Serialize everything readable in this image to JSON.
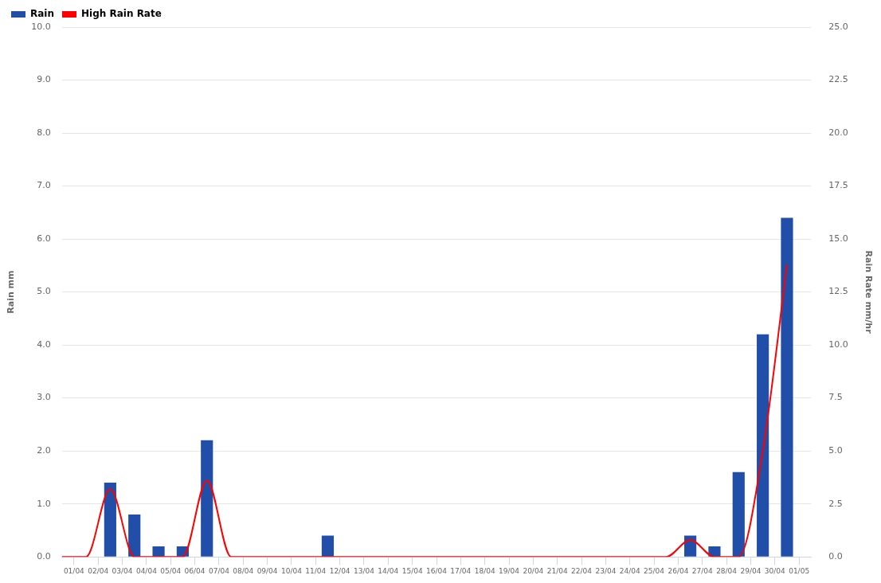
{
  "chart_data": {
    "type": "bar",
    "x": [
      "--03-31T12:00",
      "--04-01T12:00",
      "--04-02T12:00",
      "--04-03T12:00",
      "--04-04T12:00",
      "--04-05T12:00",
      "--04-06T12:00",
      "--04-07T12:00",
      "--04-08T12:00",
      "--04-09T12:00",
      "--04-10T12:00",
      "--04-11T12:00",
      "--04-12T12:00",
      "--04-13T12:00",
      "--04-14T12:00",
      "--04-15T12:00",
      "--04-16T12:00",
      "--04-17T12:00",
      "--04-18T12:00",
      "--04-19T12:00",
      "--04-20T12:00",
      "--04-21T12:00",
      "--04-22T12:00",
      "--04-23T12:00",
      "--04-24T12:00",
      "--04-25T12:00",
      "--04-26T12:00",
      "--04-27T12:00",
      "--04-28T12:00",
      "--04-29T12:00",
      "--04-30T12:00"
    ],
    "series": [
      {
        "name": "Rain",
        "color": "#204ea8",
        "values": [
          0,
          0,
          1.4,
          0.8,
          0.2,
          0.2,
          2.2,
          0,
          0,
          0,
          0,
          0.4,
          0,
          0,
          0,
          0,
          0,
          0,
          0,
          0,
          0,
          0,
          0,
          0,
          0,
          0,
          0.4,
          0.2,
          1.6,
          4.2,
          6.4
        ]
      },
      {
        "name": "High Rain Rate",
        "type": "line",
        "axis": "y2",
        "color": "#ff0000",
        "values": [
          0,
          0,
          3.2,
          0,
          0,
          0,
          3.6,
          0,
          0,
          0,
          0,
          0,
          0,
          0,
          0,
          0,
          0,
          0,
          0,
          0,
          0,
          0,
          0,
          0,
          0,
          0,
          0.8,
          0,
          0,
          5.0,
          13.8
        ]
      }
    ],
    "xlim": [
      "--03-31T12:00",
      "--05-01T12:00"
    ],
    "xticks": [
      {
        "value": "--04-01",
        "label": "01/04"
      },
      {
        "value": "--04-02",
        "label": "02/04"
      },
      {
        "value": "--04-03",
        "label": "03/04"
      },
      {
        "value": "--04-04",
        "label": "04/04"
      },
      {
        "value": "--04-05",
        "label": "05/04"
      },
      {
        "value": "--04-06",
        "label": "06/04"
      },
      {
        "value": "--04-07",
        "label": "07/04"
      },
      {
        "value": "--04-08",
        "label": "08/04"
      },
      {
        "value": "--04-09",
        "label": "09/04"
      },
      {
        "value": "--04-10",
        "label": "10/04"
      },
      {
        "value": "--04-11",
        "label": "11/04"
      },
      {
        "value": "--04-12",
        "label": "12/04"
      },
      {
        "value": "--04-13",
        "label": "13/04"
      },
      {
        "value": "--04-14",
        "label": "14/04"
      },
      {
        "value": "--04-15",
        "label": "15/04"
      },
      {
        "value": "--04-16",
        "label": "16/04"
      },
      {
        "value": "--04-17",
        "label": "17/04"
      },
      {
        "value": "--04-18",
        "label": "18/04"
      },
      {
        "value": "--04-19",
        "label": "19/04"
      },
      {
        "value": "--04-20",
        "label": "20/04"
      },
      {
        "value": "--04-21",
        "label": "21/04"
      },
      {
        "value": "--04-22",
        "label": "22/04"
      },
      {
        "value": "--04-23",
        "label": "23/04"
      },
      {
        "value": "--04-24",
        "label": "24/04"
      },
      {
        "value": "--04-25",
        "label": "25/04"
      },
      {
        "value": "--04-26",
        "label": "26/04"
      },
      {
        "value": "--04-27",
        "label": "27/04"
      },
      {
        "value": "--04-28",
        "label": "28/04"
      },
      {
        "value": "--04-29",
        "label": "29/04"
      },
      {
        "value": "--04-30",
        "label": "30/04"
      },
      {
        "value": "--05-01",
        "label": "01/05"
      }
    ],
    "ylabel": "Rain mm",
    "y2label": "Rain Rate mm/hr",
    "ylim": [
      0,
      10
    ],
    "yticks": [
      {
        "value": 0,
        "label": "0.0"
      },
      {
        "value": 1,
        "label": "1.0"
      },
      {
        "value": 2,
        "label": "2.0"
      },
      {
        "value": 3,
        "label": "3.0"
      },
      {
        "value": 4,
        "label": "4.0"
      },
      {
        "value": 5,
        "label": "5.0"
      },
      {
        "value": 6,
        "label": "6.0"
      },
      {
        "value": 7,
        "label": "7.0"
      },
      {
        "value": 8,
        "label": "8.0"
      },
      {
        "value": 9,
        "label": "9.0"
      },
      {
        "value": 10,
        "label": "10.0"
      }
    ],
    "y2lim": [
      0,
      25
    ],
    "y2ticks": [
      {
        "value": 0,
        "label": "0.0"
      },
      {
        "value": 2.5,
        "label": "2.5"
      },
      {
        "value": 5,
        "label": "5.0"
      },
      {
        "value": 7.5,
        "label": "7.5"
      },
      {
        "value": 10,
        "label": "10.0"
      },
      {
        "value": 12.5,
        "label": "12.5"
      },
      {
        "value": 15,
        "label": "15.0"
      },
      {
        "value": 17.5,
        "label": "17.5"
      },
      {
        "value": 20,
        "label": "20.0"
      },
      {
        "value": 22.5,
        "label": "22.5"
      },
      {
        "value": 25,
        "label": "25.0"
      }
    ],
    "grid": "y",
    "legend": "top left",
    "marker": "none"
  }
}
